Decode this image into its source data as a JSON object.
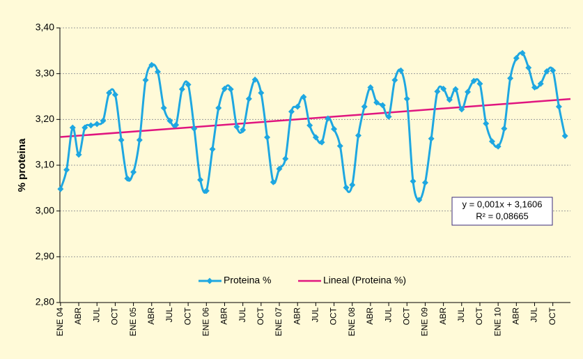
{
  "chart_data": {
    "type": "line",
    "y_label": "% proteina",
    "categories": [
      "ENE 04",
      null,
      null,
      "ABR",
      null,
      null,
      "JUL",
      null,
      null,
      "OCT",
      null,
      null,
      "ENE 05",
      null,
      null,
      "ABR",
      null,
      null,
      "JUL",
      null,
      null,
      "OCT",
      null,
      null,
      "ENE 06",
      null,
      null,
      "ABR",
      null,
      null,
      "JUL",
      null,
      null,
      "OCT",
      null,
      null,
      "ENE 07",
      null,
      null,
      "ABR",
      null,
      null,
      "JUL",
      null,
      null,
      "OCT",
      null,
      null,
      "ENE 08",
      null,
      null,
      "ABR",
      null,
      null,
      "JUL",
      null,
      null,
      "OCT",
      null,
      null,
      "ENE 09",
      null,
      null,
      "ABR",
      null,
      null,
      "JUL",
      null,
      null,
      "OCT",
      null,
      null,
      "ENE 10",
      null,
      null,
      "ABR",
      null,
      null,
      "JUL",
      null,
      null,
      "OCT",
      null,
      null
    ],
    "series": [
      {
        "name": "Proteina %",
        "color": "#1ea7e1",
        "values": [
          3.048,
          3.09,
          3.182,
          3.123,
          3.182,
          3.187,
          3.19,
          3.197,
          3.258,
          3.254,
          3.155,
          3.071,
          3.085,
          3.155,
          3.286,
          3.319,
          3.304,
          3.225,
          3.197,
          3.188,
          3.266,
          3.276,
          3.18,
          3.068,
          3.044,
          3.135,
          3.225,
          3.267,
          3.266,
          3.184,
          3.177,
          3.245,
          3.287,
          3.258,
          3.161,
          3.063,
          3.092,
          3.114,
          3.217,
          3.228,
          3.249,
          3.187,
          3.161,
          3.15,
          3.202,
          3.179,
          3.142,
          3.051,
          3.057,
          3.165,
          3.228,
          3.27,
          3.237,
          3.231,
          3.206,
          3.286,
          3.307,
          3.245,
          3.065,
          3.024,
          3.062,
          3.158,
          3.261,
          3.267,
          3.243,
          3.266,
          3.222,
          3.26,
          3.284,
          3.278,
          3.191,
          3.152,
          3.141,
          3.18,
          3.29,
          3.334,
          3.345,
          3.313,
          3.27,
          3.278,
          3.305,
          3.307,
          3.228,
          3.164
        ]
      }
    ],
    "trendline": {
      "name": "Lineal (Proteina %)",
      "color": "#e0157f",
      "start": 3.1616,
      "end": 3.2446
    },
    "annotation": [
      "y = 0,001x + 3,1606",
      "R² = 0,08665"
    ],
    "ylim": [
      2.8,
      3.4
    ],
    "yticks": [
      {
        "value": 2.8,
        "label": "2,80"
      },
      {
        "value": 2.9,
        "label": "2,90"
      },
      {
        "value": 3.0,
        "label": "3,00"
      },
      {
        "value": 3.1,
        "label": "3,10"
      },
      {
        "value": 3.2,
        "label": "3,20"
      },
      {
        "value": 3.3,
        "label": "3,30"
      },
      {
        "value": 3.4,
        "label": "3,40"
      }
    ],
    "grid": true,
    "legend": "bottom"
  }
}
